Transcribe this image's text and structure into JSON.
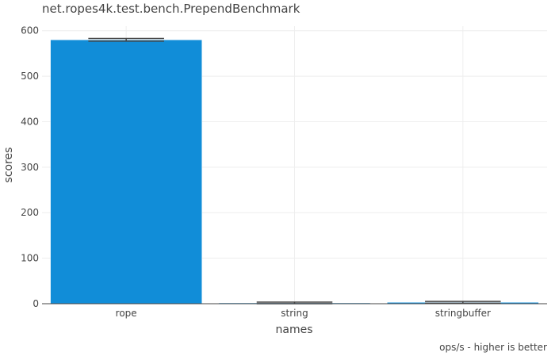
{
  "chart_data": {
    "type": "bar",
    "title": "net.ropes4k.test.bench.PrependBenchmark",
    "xlabel": "names",
    "ylabel": "scores",
    "categories": [
      "rope",
      "string",
      "stringbuffer"
    ],
    "values": [
      580,
      1.5,
      3
    ],
    "error": [
      3,
      2,
      2
    ],
    "ylim": [
      0,
      610
    ],
    "yticks": [
      0,
      100,
      200,
      300,
      400,
      500,
      600
    ],
    "grid": true,
    "bar_color": "#118dd8",
    "annotation": "ops/s - higher is better"
  }
}
